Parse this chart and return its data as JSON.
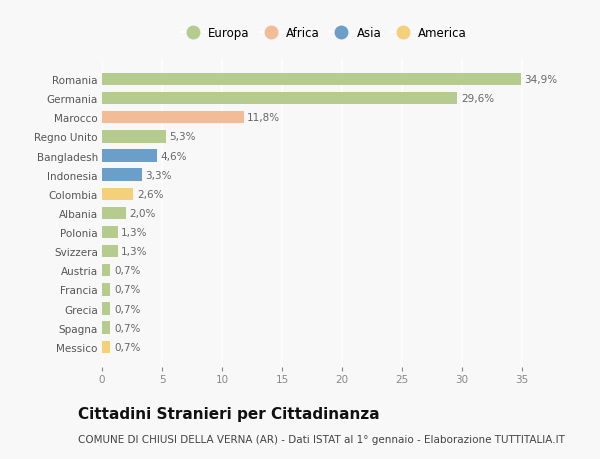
{
  "countries": [
    "Romania",
    "Germania",
    "Marocco",
    "Regno Unito",
    "Bangladesh",
    "Indonesia",
    "Colombia",
    "Albania",
    "Polonia",
    "Svizzera",
    "Austria",
    "Francia",
    "Grecia",
    "Spagna",
    "Messico"
  ],
  "values": [
    34.9,
    29.6,
    11.8,
    5.3,
    4.6,
    3.3,
    2.6,
    2.0,
    1.3,
    1.3,
    0.7,
    0.7,
    0.7,
    0.7,
    0.7
  ],
  "labels": [
    "34,9%",
    "29,6%",
    "11,8%",
    "5,3%",
    "4,6%",
    "3,3%",
    "2,6%",
    "2,0%",
    "1,3%",
    "1,3%",
    "0,7%",
    "0,7%",
    "0,7%",
    "0,7%",
    "0,7%"
  ],
  "continents": [
    "Europa",
    "Europa",
    "Africa",
    "Europa",
    "Asia",
    "Asia",
    "America",
    "Europa",
    "Europa",
    "Europa",
    "Europa",
    "Europa",
    "Europa",
    "Europa",
    "America"
  ],
  "colors": {
    "Europa": "#b5cc8e",
    "Africa": "#f2bc96",
    "Asia": "#6b9ec8",
    "America": "#f5d07a"
  },
  "legend_order": [
    "Europa",
    "Africa",
    "Asia",
    "America"
  ],
  "xlim": [
    0,
    37
  ],
  "xticks": [
    0,
    5,
    10,
    15,
    20,
    25,
    30,
    35
  ],
  "title": "Cittadini Stranieri per Cittadinanza",
  "subtitle": "COMUNE DI CHIUSI DELLA VERNA (AR) - Dati ISTAT al 1° gennaio - Elaborazione TUTTITALIA.IT",
  "bg_color": "#f8f8f8",
  "grid_color": "#ffffff",
  "bar_height": 0.65,
  "title_fontsize": 11,
  "subtitle_fontsize": 7.5,
  "label_fontsize": 7.5,
  "tick_fontsize": 7.5,
  "legend_fontsize": 8.5
}
